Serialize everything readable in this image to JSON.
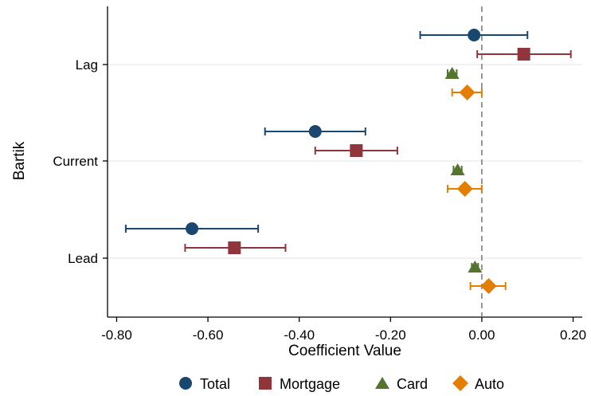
{
  "chart_data": {
    "type": "scatter",
    "xlabel": "Coefficient Value",
    "ylabel": "Bartik",
    "xlim": [
      -0.82,
      0.22
    ],
    "x_ticks": [
      -0.8,
      -0.6,
      -0.4,
      -0.2,
      0.0,
      0.2
    ],
    "x_tick_labels": [
      "-0.80",
      "-0.60",
      "-0.40",
      "-0.20",
      "0.00",
      "0.20"
    ],
    "categories": [
      "Lag",
      "Current",
      "Lead"
    ],
    "grid": "horizontal",
    "reference_line": {
      "x": 0.0,
      "style": "dashed"
    },
    "legend_position": "bottom",
    "series": [
      {
        "name": "Total",
        "marker": "circle",
        "color": "#1a476f",
        "estimates": [
          -0.017,
          -0.365,
          -0.635
        ],
        "ci_low": [
          -0.135,
          -0.475,
          -0.78
        ],
        "ci_high": [
          0.1,
          -0.255,
          -0.49
        ]
      },
      {
        "name": "Mortgage",
        "marker": "square",
        "color": "#90353b",
        "estimates": [
          0.092,
          -0.275,
          -0.542
        ],
        "ci_low": [
          -0.01,
          -0.365,
          -0.65
        ],
        "ci_high": [
          0.195,
          -0.185,
          -0.43
        ]
      },
      {
        "name": "Card",
        "marker": "triangle",
        "color": "#55752f",
        "estimates": [
          -0.065,
          -0.053,
          -0.015
        ],
        "ci_low": [
          -0.075,
          -0.062,
          -0.022
        ],
        "ci_high": [
          -0.055,
          -0.044,
          -0.008
        ]
      },
      {
        "name": "Auto",
        "marker": "diamond",
        "color": "#e37e00",
        "estimates": [
          -0.032,
          -0.037,
          0.015
        ],
        "ci_low": [
          -0.065,
          -0.075,
          -0.025
        ],
        "ci_high": [
          0.0,
          0.0,
          0.052
        ]
      }
    ]
  }
}
